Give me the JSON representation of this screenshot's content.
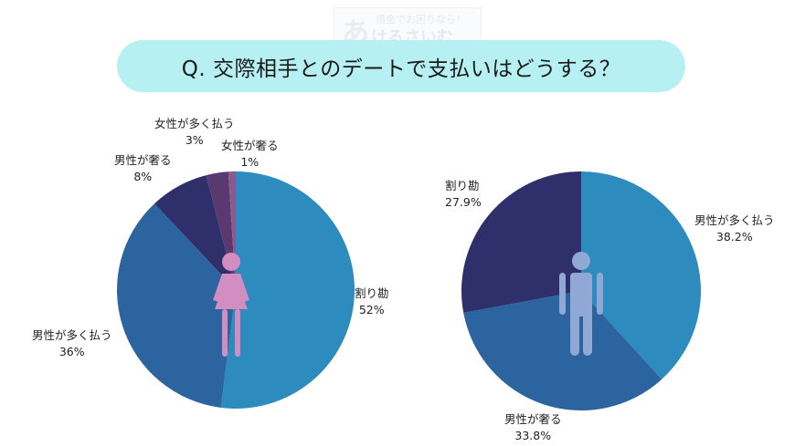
{
  "watermark": {
    "line1": "借金でお困りなら！",
    "line2": "けるさいむ",
    "logo_char": "あ"
  },
  "title": "Q. 交際相手とのデートで支払いはどうする？",
  "colors": {
    "banner": "#b6f0f2",
    "warikan": "#2e8bbd",
    "male_pays_more": "#2c64a0",
    "male_treats": "#2e2f6b",
    "female_pays_more": "#5a3a6e",
    "female_treats": "#8a5a8e",
    "female_icon": "#d28ec0",
    "male_icon": "#8fa8d4"
  },
  "chart_data": [
    {
      "type": "pie",
      "title": "女性",
      "icon": "female-icon",
      "categories": [
        "割り勘",
        "男性が多く払う",
        "男性が奢る",
        "女性が多く払う",
        "女性が奢る"
      ],
      "values": [
        52,
        36,
        8,
        3,
        1
      ],
      "labels": [
        {
          "name": "割り勘",
          "pct": "52%"
        },
        {
          "name": "男性が多く払う",
          "pct": "36%"
        },
        {
          "name": "男性が奢る",
          "pct": "8%"
        },
        {
          "name": "女性が多く払う",
          "pct": "3%"
        },
        {
          "name": "女性が奢る",
          "pct": "1%"
        }
      ],
      "start": "12 o'clock, clockwise"
    },
    {
      "type": "pie",
      "title": "男性",
      "icon": "male-icon",
      "categories": [
        "男性が多く払う",
        "男性が奢る",
        "割り勘"
      ],
      "values": [
        38.2,
        33.8,
        27.9
      ],
      "labels": [
        {
          "name": "男性が多く払う",
          "pct": "38.2%"
        },
        {
          "name": "男性が奢る",
          "pct": "33.8%"
        },
        {
          "name": "割り勘",
          "pct": "27.9%"
        }
      ],
      "start": "12 o'clock, clockwise"
    }
  ]
}
